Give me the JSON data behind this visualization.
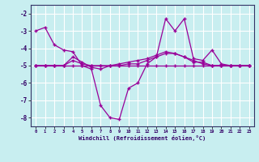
{
  "xlabel": "Windchill (Refroidissement éolien,°C)",
  "background_color": "#c8eef0",
  "grid_color": "#ffffff",
  "line_color": "#990099",
  "xlim": [
    -0.5,
    23.5
  ],
  "ylim": [
    -8.5,
    -1.5
  ],
  "yticks": [
    -8,
    -7,
    -6,
    -5,
    -4,
    -3,
    -2
  ],
  "xticks": [
    0,
    1,
    2,
    3,
    4,
    5,
    6,
    7,
    8,
    9,
    10,
    11,
    12,
    13,
    14,
    15,
    16,
    17,
    18,
    19,
    20,
    21,
    22,
    23
  ],
  "series": [
    [
      -3.0,
      -2.8,
      -3.8,
      -4.1,
      -4.2,
      -5.0,
      -5.2,
      -7.3,
      -8.0,
      -8.1,
      -6.3,
      -6.0,
      -4.9,
      -4.5,
      -2.3,
      -3.0,
      -2.3,
      -4.6,
      -4.7,
      -4.1,
      -4.9,
      -5.0,
      -5.0,
      -5.0
    ],
    [
      -5.0,
      -5.0,
      -5.0,
      -5.0,
      -5.0,
      -5.0,
      -5.0,
      -5.0,
      -5.0,
      -5.0,
      -5.0,
      -5.0,
      -5.0,
      -5.0,
      -5.0,
      -5.0,
      -5.0,
      -5.0,
      -5.0,
      -5.0,
      -5.0,
      -5.0,
      -5.0,
      -5.0
    ],
    [
      -5.0,
      -5.0,
      -5.0,
      -5.0,
      -4.7,
      -4.9,
      -5.0,
      -5.0,
      -5.0,
      -5.0,
      -4.9,
      -4.9,
      -4.7,
      -4.5,
      -4.3,
      -4.3,
      -4.5,
      -4.7,
      -4.9,
      -5.0,
      -5.0,
      -5.0,
      -5.0,
      -5.0
    ],
    [
      -5.0,
      -5.0,
      -5.0,
      -5.0,
      -4.5,
      -4.8,
      -5.1,
      -5.2,
      -5.0,
      -4.9,
      -4.8,
      -4.7,
      -4.6,
      -4.4,
      -4.2,
      -4.3,
      -4.5,
      -4.8,
      -4.8,
      -5.0,
      -5.0,
      -5.0,
      -5.0,
      -5.0
    ]
  ]
}
